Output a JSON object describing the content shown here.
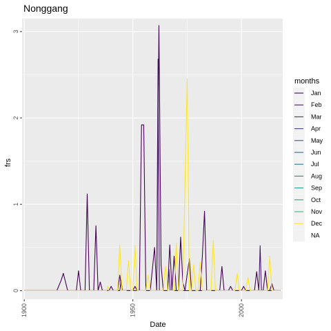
{
  "chart_data": {
    "type": "line",
    "title": "Nonggang",
    "xlabel": "Date",
    "ylabel": "frs",
    "x_ticks": [
      "1900",
      "1950",
      "2000"
    ],
    "y_ticks": [
      "0",
      "1",
      "2",
      "3"
    ],
    "xlim": [
      1899,
      2019
    ],
    "ylim": [
      -0.1,
      3.15
    ],
    "grid": true,
    "legend": {
      "title": "months",
      "position": "right",
      "entries": [
        "Jan",
        "Feb",
        "Mar",
        "Apr",
        "May",
        "Jun",
        "Jul",
        "Aug",
        "Sep",
        "Oct",
        "Nov",
        "Dec",
        "NA"
      ]
    },
    "series": [
      {
        "name": "Jan",
        "color": "#440154",
        "points": [
          [
            1900,
            0
          ],
          [
            1911,
            0
          ],
          [
            1915,
            0
          ],
          [
            1917,
            0.12
          ],
          [
            1918,
            0.2
          ],
          [
            1919,
            0.1
          ],
          [
            1920,
            0
          ],
          [
            1924,
            0
          ],
          [
            1925,
            0.23
          ],
          [
            1926,
            0
          ],
          [
            1928,
            0
          ],
          [
            1929,
            1.12
          ],
          [
            1930,
            0
          ],
          [
            1932,
            0
          ],
          [
            1933,
            0.75
          ],
          [
            1934,
            0
          ],
          [
            1935,
            0.1
          ],
          [
            1936,
            0
          ],
          [
            1939,
            0
          ],
          [
            1940,
            0.05
          ],
          [
            1941,
            0
          ],
          [
            1943,
            0
          ],
          [
            1944,
            0.18
          ],
          [
            1945,
            0
          ],
          [
            1950,
            0
          ],
          [
            1951,
            0.05
          ],
          [
            1952,
            0
          ],
          [
            1953,
            0
          ],
          [
            1954,
            1.92
          ],
          [
            1955,
            1.92
          ],
          [
            1956,
            0
          ],
          [
            1958,
            0
          ],
          [
            1960,
            0.5
          ],
          [
            1961,
            0
          ],
          [
            1962,
            3.07
          ],
          [
            1963,
            0.3
          ],
          [
            1964,
            0
          ],
          [
            1966,
            0
          ],
          [
            1967,
            0.53
          ],
          [
            1968,
            0
          ],
          [
            1969,
            0.4
          ],
          [
            1970,
            0
          ],
          [
            1971,
            0
          ],
          [
            1972,
            0.62
          ],
          [
            1973,
            0.1
          ],
          [
            1974,
            0
          ],
          [
            1976,
            0.37
          ],
          [
            1977,
            0
          ],
          [
            1981,
            0
          ],
          [
            1982,
            0.4
          ],
          [
            1983,
            0.92
          ],
          [
            1984,
            0
          ],
          [
            1990,
            0
          ],
          [
            1991,
            0.28
          ],
          [
            1992,
            0
          ],
          [
            1994,
            0
          ],
          [
            1995,
            0.05
          ],
          [
            1996,
            0
          ],
          [
            2000,
            0
          ],
          [
            2001,
            0.05
          ],
          [
            2002,
            0
          ],
          [
            2006,
            0
          ],
          [
            2007,
            0.22
          ],
          [
            2008,
            0
          ],
          [
            2010,
            0
          ],
          [
            2011,
            0.23
          ],
          [
            2012,
            0
          ],
          [
            2013,
            0
          ],
          [
            2014,
            0.08
          ],
          [
            2015,
            0
          ],
          [
            2018,
            0
          ]
        ]
      },
      {
        "name": "Feb",
        "color": "#481a6c",
        "points": [
          [
            1900,
            0
          ],
          [
            1944,
            0
          ],
          [
            1944.6,
            0.12
          ],
          [
            1945.2,
            0
          ],
          [
            1961,
            0
          ],
          [
            1961.6,
            2.68
          ],
          [
            1962.2,
            0
          ],
          [
            1966,
            0
          ],
          [
            1966.6,
            0.25
          ],
          [
            1967.2,
            0
          ],
          [
            2008,
            0
          ],
          [
            2008.6,
            0.52
          ],
          [
            2009.2,
            0
          ],
          [
            2018,
            0
          ]
        ]
      },
      {
        "name": "Dec",
        "color": "#fde725",
        "points": [
          [
            1900,
            0
          ],
          [
            1938,
            0
          ],
          [
            1938.5,
            0.05
          ],
          [
            1939,
            0
          ],
          [
            1943,
            0
          ],
          [
            1944,
            0.53
          ],
          [
            1945,
            0
          ],
          [
            1947,
            0
          ],
          [
            1948,
            0.35
          ],
          [
            1949,
            0
          ],
          [
            1950,
            0
          ],
          [
            1951,
            0.52
          ],
          [
            1952,
            0
          ],
          [
            1956,
            0
          ],
          [
            1957,
            0.18
          ],
          [
            1958,
            0
          ],
          [
            1964,
            0
          ],
          [
            1965,
            0.28
          ],
          [
            1966,
            0
          ],
          [
            1969,
            0
          ],
          [
            1970,
            0.55
          ],
          [
            1971,
            0
          ],
          [
            1973,
            0
          ],
          [
            1975,
            2.45
          ],
          [
            1976,
            0
          ],
          [
            1977,
            0
          ],
          [
            1978,
            0.3
          ],
          [
            1979,
            0
          ],
          [
            1980,
            0
          ],
          [
            1981,
            0.33
          ],
          [
            1982,
            0
          ],
          [
            1986,
            0
          ],
          [
            1987,
            0.58
          ],
          [
            1988,
            0
          ],
          [
            1997,
            0
          ],
          [
            1998,
            0.2
          ],
          [
            1999,
            0
          ],
          [
            2002,
            0
          ],
          [
            2003,
            0.15
          ],
          [
            2004,
            0
          ],
          [
            2012,
            0
          ],
          [
            2013,
            0.4
          ],
          [
            2014,
            0
          ],
          [
            2018,
            0
          ]
        ]
      }
    ]
  },
  "legend_colors": [
    "#440154",
    "#481a6c",
    "#472f7d",
    "#414487",
    "#39568c",
    "#31688e",
    "#2a788e",
    "#23888e",
    "#1f988b",
    "#22a884",
    "#35b779",
    "#fde725",
    "#f2f2f2"
  ]
}
